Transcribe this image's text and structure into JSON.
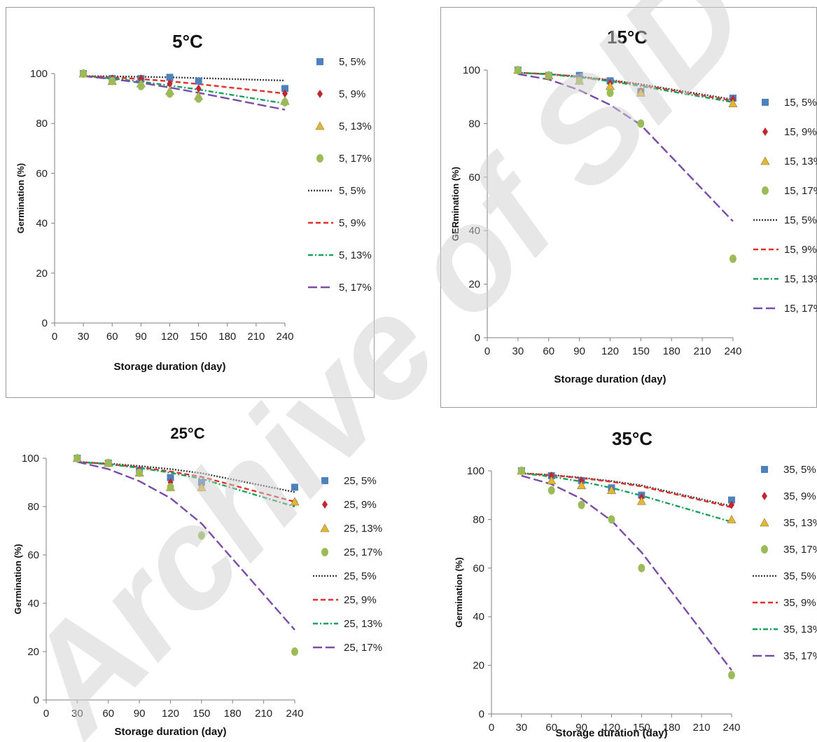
{
  "watermark": "Archive of SID",
  "chart_data": [
    {
      "type": "scatter",
      "title": "5°C",
      "xlabel": "Storage duration (day)",
      "ylabel": "Germination (%)",
      "xlim": [
        0,
        240
      ],
      "ylim": [
        0,
        100
      ],
      "xticks": [
        "0",
        "30",
        "60",
        "90",
        "120",
        "150",
        "180",
        "210",
        "240"
      ],
      "yticks": [
        "0",
        "20",
        "40",
        "60",
        "80",
        "100"
      ],
      "x": [
        30,
        60,
        90,
        120,
        150,
        240
      ],
      "series": [
        {
          "name": "5, 5%",
          "kind": "points",
          "marker": "square",
          "color": "#4f81bd",
          "values": [
            100,
            98,
            98,
            98.5,
            97,
            94
          ]
        },
        {
          "name": "5, 9%",
          "kind": "points",
          "marker": "diamond",
          "color": "#c0272d",
          "values": [
            100,
            98,
            98,
            96,
            94,
            92
          ]
        },
        {
          "name": "5, 13%",
          "kind": "points",
          "marker": "triangle",
          "color": "#e3b636",
          "values": [
            100,
            97,
            96,
            93,
            91,
            89
          ]
        },
        {
          "name": "5, 17%",
          "kind": "points",
          "marker": "circle",
          "color": "#9bbb59",
          "values": [
            100,
            97,
            95,
            92,
            90,
            88.5
          ]
        },
        {
          "name": "5, 5%",
          "kind": "line",
          "dash": "2,2",
          "color": "#404040",
          "values": [
            99,
            98.9,
            98.7,
            98.5,
            98.2,
            97.2
          ]
        },
        {
          "name": "5, 9%",
          "kind": "line",
          "dash": "7,4",
          "color": "#e0302a",
          "values": [
            99,
            98.5,
            97.8,
            96.9,
            95.8,
            92
          ]
        },
        {
          "name": "5, 13%",
          "kind": "line",
          "dash": "7,3,2,3",
          "color": "#19a05a",
          "values": [
            99,
            98,
            96.8,
            95.2,
            93.6,
            88
          ]
        },
        {
          "name": "5, 17%",
          "kind": "line",
          "dash": "13,5",
          "color": "#7a4ba8",
          "values": [
            99,
            97.8,
            96.3,
            94.4,
            92.3,
            85.5
          ]
        }
      ]
    },
    {
      "type": "scatter",
      "title": "15°C",
      "xlabel": "Storage duration (day)",
      "ylabel": "GERmination (%)",
      "xlim": [
        0,
        240
      ],
      "ylim": [
        0,
        100
      ],
      "xticks": [
        "0",
        "30",
        "60",
        "90",
        "120",
        "150",
        "180",
        "210",
        "240"
      ],
      "yticks": [
        "0",
        "20",
        "40",
        "60",
        "80",
        "100"
      ],
      "x": [
        30,
        60,
        90,
        120,
        150,
        240
      ],
      "series": [
        {
          "name": "15, 5%",
          "kind": "points",
          "marker": "square",
          "color": "#4f81bd",
          "values": [
            100,
            98,
            98,
            96,
            92,
            89.5
          ]
        },
        {
          "name": "15, 9%",
          "kind": "points",
          "marker": "diamond",
          "color": "#c0272d",
          "values": [
            100,
            98,
            97,
            95,
            92,
            89
          ]
        },
        {
          "name": "15, 13%",
          "kind": "points",
          "marker": "triangle",
          "color": "#e3b636",
          "values": [
            100,
            98,
            96,
            94,
            91.5,
            87.5
          ]
        },
        {
          "name": "15, 17%",
          "kind": "points",
          "marker": "circle",
          "color": "#9bbb59",
          "values": [
            100,
            98,
            96,
            91.5,
            80,
            29.5
          ]
        },
        {
          "name": "15, 5%",
          "kind": "line",
          "dash": "2,2",
          "color": "#404040",
          "values": [
            99,
            98.5,
            97.6,
            96.3,
            94.7,
            89
          ]
        },
        {
          "name": "15, 9%",
          "kind": "line",
          "dash": "7,4",
          "color": "#e0302a",
          "values": [
            99,
            98.5,
            97.5,
            96.1,
            94.4,
            88.5
          ]
        },
        {
          "name": "15, 13%",
          "kind": "line",
          "dash": "7,3,2,3",
          "color": "#19a05a",
          "values": [
            99,
            98.4,
            97.3,
            95.8,
            94,
            88
          ]
        },
        {
          "name": "15, 17%",
          "kind": "line",
          "dash": "13,5",
          "color": "#7a4ba8",
          "values": [
            98.5,
            96.5,
            92.5,
            87,
            79.5,
            43.5
          ]
        }
      ]
    },
    {
      "type": "scatter",
      "title": "25°C",
      "xlabel": "Storage duration (day)",
      "ylabel": "Germination (%)",
      "xlim": [
        0,
        240
      ],
      "ylim": [
        0,
        100
      ],
      "xticks": [
        "0",
        "30",
        "60",
        "90",
        "120",
        "150",
        "180",
        "210",
        "240"
      ],
      "yticks": [
        "0",
        "20",
        "40",
        "60",
        "80",
        "100"
      ],
      "x": [
        30,
        60,
        90,
        120,
        150,
        240
      ],
      "series": [
        {
          "name": "25, 5%",
          "kind": "points",
          "marker": "square",
          "color": "#4f81bd",
          "values": [
            100,
            98,
            95,
            92,
            90,
            88
          ]
        },
        {
          "name": "25, 9%",
          "kind": "points",
          "marker": "diamond",
          "color": "#c0272d",
          "values": [
            100,
            98,
            95,
            90,
            88,
            82
          ]
        },
        {
          "name": "25, 13%",
          "kind": "points",
          "marker": "triangle",
          "color": "#e3b636",
          "values": [
            100,
            98,
            94,
            88,
            88,
            82
          ]
        },
        {
          "name": "25, 17%",
          "kind": "points",
          "marker": "circle",
          "color": "#9bbb59",
          "values": [
            100,
            98,
            94,
            88,
            68,
            20
          ]
        },
        {
          "name": "25, 5%",
          "kind": "line",
          "dash": "2,2",
          "color": "#404040",
          "values": [
            98.5,
            97.8,
            96.8,
            95.5,
            93.8,
            86
          ]
        },
        {
          "name": "25, 9%",
          "kind": "line",
          "dash": "7,4",
          "color": "#e0302a",
          "values": [
            98.5,
            97.6,
            96.3,
            94.5,
            92.3,
            82
          ]
        },
        {
          "name": "25, 13%",
          "kind": "line",
          "dash": "7,3,2,3",
          "color": "#19a05a",
          "values": [
            98.5,
            97.5,
            96,
            94,
            91.5,
            80
          ]
        },
        {
          "name": "25, 17%",
          "kind": "line",
          "dash": "13,5",
          "color": "#7a4ba8",
          "values": [
            98.5,
            95.5,
            90.5,
            83.5,
            73,
            29
          ]
        }
      ]
    },
    {
      "type": "scatter",
      "title": "35°C",
      "xlabel": "Storage duration (day)",
      "ylabel": "Germination (%)",
      "xlim": [
        0,
        240
      ],
      "ylim": [
        0,
        100
      ],
      "xticks": [
        "0",
        "30",
        "60",
        "90",
        "120",
        "150",
        "180",
        "210",
        "240"
      ],
      "yticks": [
        "0",
        "20",
        "40",
        "60",
        "80",
        "100"
      ],
      "x": [
        30,
        60,
        90,
        120,
        150,
        240
      ],
      "series": [
        {
          "name": "35, 5%",
          "kind": "points",
          "marker": "square",
          "color": "#4f81bd",
          "values": [
            100,
            98,
            96,
            93,
            90,
            88
          ]
        },
        {
          "name": "35, 9%",
          "kind": "points",
          "marker": "diamond",
          "color": "#c0272d",
          "values": [
            100,
            98,
            96,
            92,
            89,
            86
          ]
        },
        {
          "name": "35, 13%",
          "kind": "points",
          "marker": "triangle",
          "color": "#e3b636",
          "values": [
            100,
            96,
            94,
            92,
            87.5,
            80
          ]
        },
        {
          "name": "35, 17%",
          "kind": "points",
          "marker": "circle",
          "color": "#9bbb59",
          "values": [
            100,
            92,
            86,
            80,
            60,
            16
          ]
        },
        {
          "name": "35, 5%",
          "kind": "line",
          "dash": "2,2",
          "color": "#404040",
          "values": [
            99,
            98.3,
            97.2,
            95.8,
            94,
            85.5
          ]
        },
        {
          "name": "35, 9%",
          "kind": "line",
          "dash": "7,4",
          "color": "#e0302a",
          "values": [
            99,
            98.2,
            97,
            95.5,
            93.6,
            85
          ]
        },
        {
          "name": "35, 13%",
          "kind": "line",
          "dash": "7,3,2,3",
          "color": "#19a05a",
          "values": [
            99,
            97.6,
            95.6,
            93,
            89.8,
            79
          ]
        },
        {
          "name": "35, 17%",
          "kind": "line",
          "dash": "13,5",
          "color": "#7a4ba8",
          "values": [
            98,
            94.5,
            88.5,
            79.5,
            66.5,
            18
          ]
        }
      ]
    }
  ]
}
